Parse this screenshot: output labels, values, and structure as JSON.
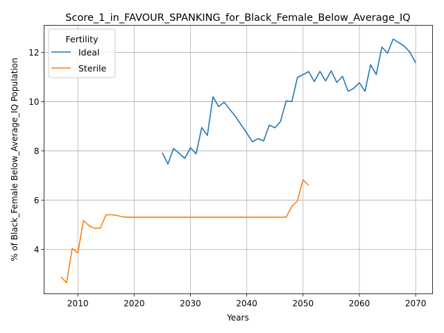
{
  "chart_data": {
    "type": "line",
    "title": "Score_1_in_FAVOUR_SPANKING_for_Black_Female_Below_Average_IQ",
    "xlabel": "Years",
    "ylabel": "% of Black_Female Below_Average_IQ Population",
    "xlim": [
      2004,
      2073
    ],
    "ylim": [
      2.2,
      13.1
    ],
    "xticks": [
      "2010",
      "2020",
      "2030",
      "2040",
      "2050",
      "2060",
      "2070"
    ],
    "yticks": [
      "4",
      "6",
      "8",
      "10",
      "12"
    ],
    "grid": true,
    "legend": {
      "title": "Fertility",
      "placement": "top-left"
    },
    "series": [
      {
        "name": "Ideal",
        "color": "#1f77b4",
        "x": [
          2025,
          2026,
          2027,
          2028,
          2029,
          2030,
          2031,
          2032,
          2033,
          2034,
          2035,
          2036,
          2037,
          2038,
          2039,
          2040,
          2041,
          2042,
          2043,
          2044,
          2045,
          2046,
          2047,
          2048,
          2049,
          2050,
          2051,
          2052,
          2053,
          2054,
          2055,
          2056,
          2057,
          2058,
          2059,
          2060,
          2061,
          2062,
          2063,
          2064,
          2065,
          2066,
          2067,
          2068,
          2069,
          2070
        ],
        "y": [
          7.93,
          7.47,
          8.1,
          7.9,
          7.7,
          8.13,
          7.88,
          8.95,
          8.63,
          10.2,
          9.8,
          9.98,
          9.68,
          9.4,
          9.06,
          8.73,
          8.37,
          8.5,
          8.41,
          9.05,
          8.94,
          9.2,
          10.03,
          10.0,
          10.98,
          11.1,
          11.22,
          10.82,
          11.23,
          10.84,
          11.25,
          10.78,
          11.03,
          10.42,
          10.54,
          10.77,
          10.42,
          11.5,
          11.1,
          12.22,
          11.97,
          12.54,
          12.4,
          12.25,
          12.0,
          11.58
        ]
      },
      {
        "name": "Sterile",
        "color": "#ff7f0e",
        "x": [
          2007,
          2008,
          2009,
          2010,
          2011,
          2012,
          2013,
          2014,
          2015,
          2016,
          2017,
          2018,
          2019,
          2020,
          2021,
          2022,
          2023,
          2024,
          2025,
          2026,
          2027,
          2028,
          2029,
          2030,
          2031,
          2032,
          2033,
          2034,
          2035,
          2036,
          2037,
          2038,
          2039,
          2040,
          2041,
          2042,
          2043,
          2044,
          2045,
          2046,
          2047,
          2048,
          2049,
          2050,
          2051
        ],
        "y": [
          2.88,
          2.65,
          4.04,
          3.86,
          5.18,
          4.96,
          4.86,
          4.87,
          5.41,
          5.41,
          5.38,
          5.32,
          5.31,
          5.31,
          5.31,
          5.31,
          5.31,
          5.31,
          5.31,
          5.31,
          5.31,
          5.31,
          5.31,
          5.31,
          5.31,
          5.31,
          5.31,
          5.31,
          5.31,
          5.31,
          5.31,
          5.31,
          5.31,
          5.31,
          5.31,
          5.31,
          5.31,
          5.31,
          5.31,
          5.31,
          5.31,
          5.75,
          5.97,
          6.83,
          6.6
        ]
      }
    ]
  }
}
